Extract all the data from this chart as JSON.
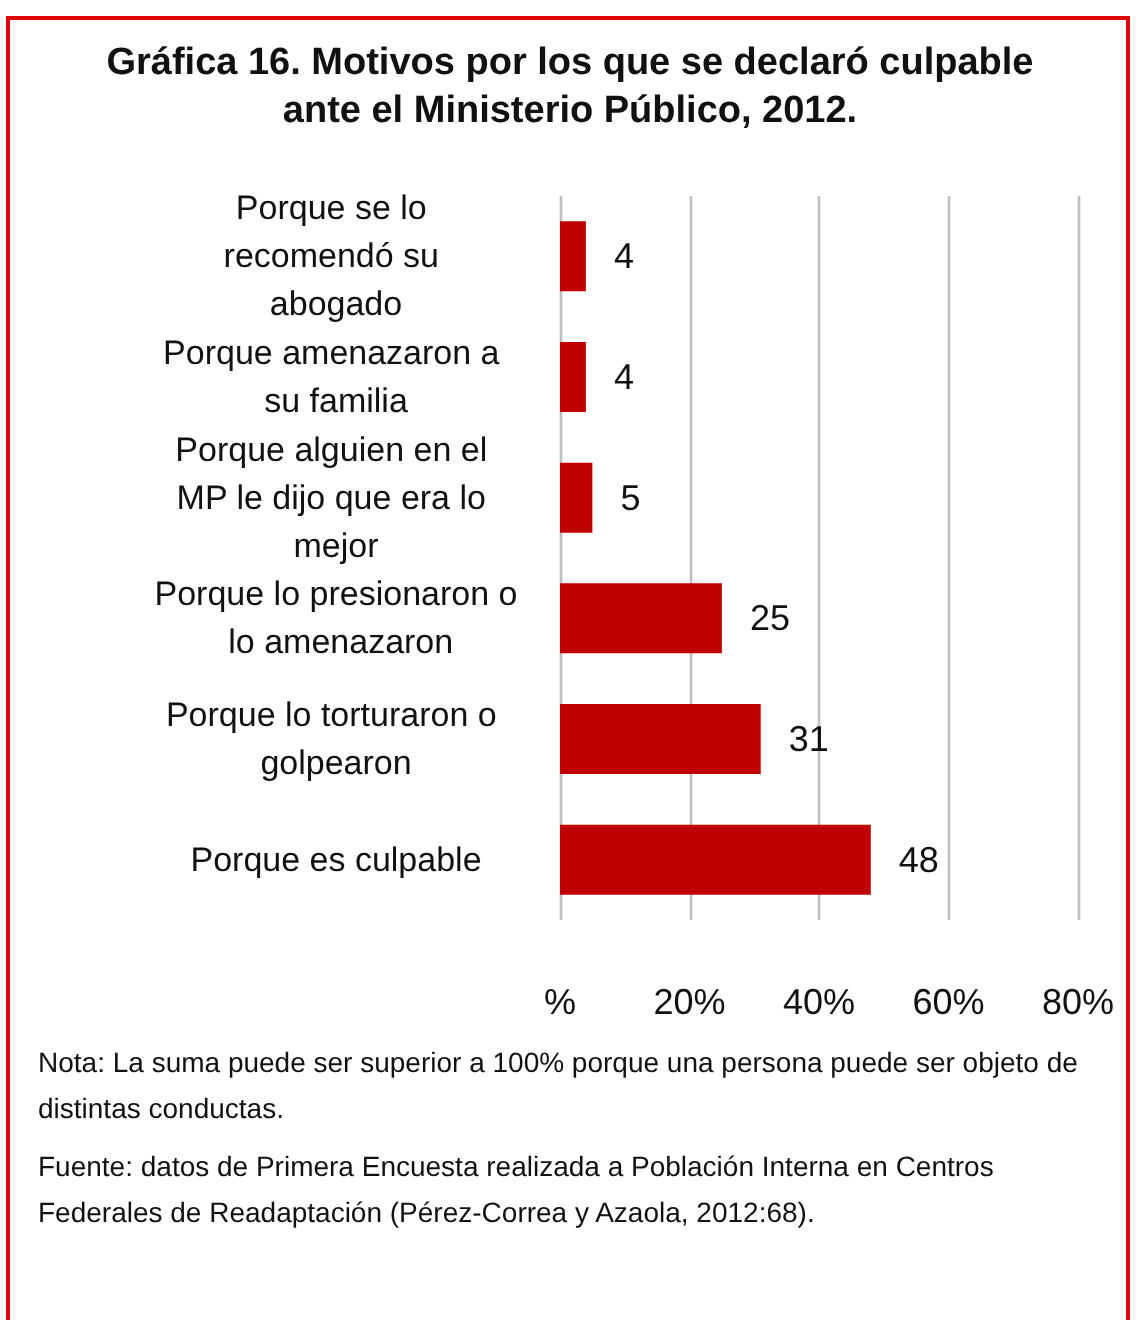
{
  "chart_data": {
    "type": "bar",
    "orientation": "horizontal",
    "title": "Gráfica 16. Motivos por los que se declaró culpable ante el Ministerio Público, 2012.",
    "categories": [
      "Porque se lo recomendó su abogado",
      "Porque amenazaron a su familia",
      "Porque alguien en el MP le dijo que era lo mejor",
      "Porque lo presionaron o lo amenazaron",
      "Porque lo torturaron o golpearon",
      "Porque es culpable"
    ],
    "values": [
      4,
      4,
      5,
      25,
      31,
      48
    ],
    "color": "#c00000",
    "data_labels": true,
    "xlim": [
      0,
      80
    ],
    "xticks": [
      {
        "value": 0,
        "label": "%"
      },
      {
        "value": 20,
        "label": "20%"
      },
      {
        "value": 40,
        "label": "40%"
      },
      {
        "value": 60,
        "label": "60%"
      },
      {
        "value": 80,
        "label": "80%"
      }
    ],
    "grid": "x",
    "annotations": [
      "Nota: La suma puede ser superior a 100% porque una persona puede ser objeto de distintas conductas.",
      "Fuente: datos de Primera Encuesta realizada a Población Interna en Centros Federales de Readaptación (Pérez-Correa y Azaola, 2012:68)."
    ]
  }
}
